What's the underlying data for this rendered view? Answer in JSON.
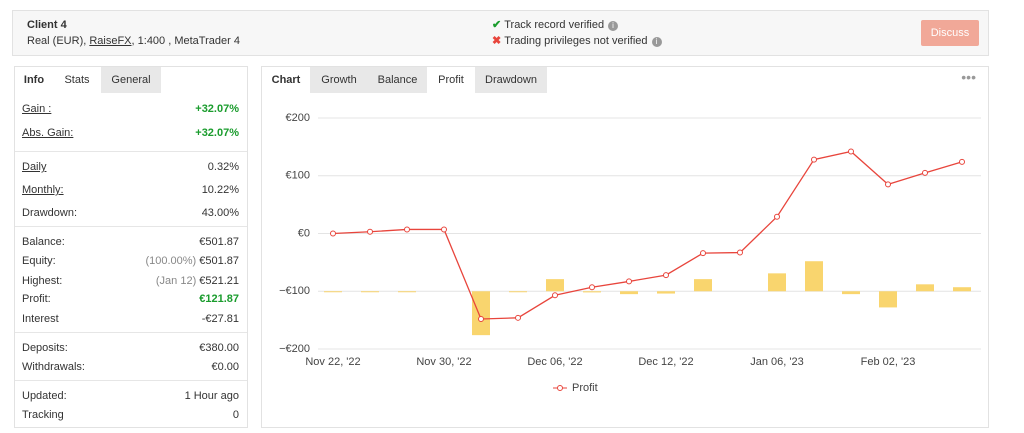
{
  "header": {
    "client": "Client 4",
    "account": [
      "Real (EUR), ",
      "RaiseFX",
      ", 1:400 , MetaTrader 4"
    ],
    "statuses": [
      {
        "text": "Track record verified",
        "ok": true
      },
      {
        "text": "Trading privileges not verified",
        "ok": false
      }
    ],
    "button": "Discuss"
  },
  "left_tabs": {
    "items": [
      "Info",
      "Stats",
      "General"
    ],
    "active": 0
  },
  "stats": [
    [
      {
        "label": "Gain :",
        "value": "+32.07%",
        "underline": true,
        "positive": true
      },
      {
        "label": "Abs. Gain:",
        "value": "+32.07%",
        "underline": true,
        "positive": true
      }
    ],
    [
      {
        "label": "Daily",
        "value": "0.32%",
        "underline": true
      },
      {
        "label": "Monthly:",
        "value": "10.22%",
        "underline": true
      },
      {
        "label": "Drawdown:",
        "value": "43.00%"
      }
    ],
    [
      {
        "label": "Balance:",
        "value": "€501.87"
      },
      {
        "label": "Equity:",
        "value": "€501.87",
        "note": "(100.00%)"
      },
      {
        "label": "Highest:",
        "value": "€521.21",
        "note": "(Jan 12)"
      },
      {
        "label": "Profit:",
        "value": "€121.87",
        "positive": true
      },
      {
        "label": "Interest",
        "value": "-€27.81"
      }
    ],
    [
      {
        "label": "Deposits:",
        "value": "€380.00"
      },
      {
        "label": "Withdrawals:",
        "value": "€0.00"
      }
    ],
    [
      {
        "label": "Updated:",
        "value": "1 Hour ago"
      },
      {
        "label": "Tracking",
        "value": "0"
      }
    ]
  ],
  "chart_tabs": {
    "items": [
      "Chart",
      "Growth",
      "Balance",
      "Profit",
      "Drawdown"
    ],
    "active": 3
  },
  "chart_data": {
    "type": "line",
    "categories": [
      "Nov 22, '22",
      null,
      null,
      "Nov 30, '22",
      null,
      null,
      "Dec 06, '22",
      null,
      null,
      "Dec 12, '22",
      null,
      null,
      "Jan 06, '23",
      null,
      null,
      "Feb 02, '23",
      null,
      null
    ],
    "series": [
      {
        "name": "Profit",
        "color": "#e8453c",
        "values": [
          0,
          3,
          7,
          7,
          -148,
          -146,
          -107,
          -93,
          -83,
          -72,
          -34,
          -33,
          29,
          128,
          142,
          85,
          105,
          124
        ]
      },
      {
        "type": "bar",
        "color": "#f9d56e",
        "base": -100,
        "values": [
          -101,
          -101,
          -101,
          null,
          -176,
          -101,
          -79,
          -102,
          -105,
          -104,
          -79,
          null,
          -69,
          -48,
          -105,
          -128,
          -88,
          -93
        ]
      }
    ],
    "ylim": [
      -200,
      200
    ],
    "yticks": [
      {
        "value": 200,
        "label": "€200"
      },
      {
        "value": 100,
        "label": "€100"
      },
      {
        "value": 0,
        "label": "€0"
      },
      {
        "value": -100,
        "label": "−€100"
      },
      {
        "value": -200,
        "label": "−€200"
      }
    ],
    "grid": true
  }
}
